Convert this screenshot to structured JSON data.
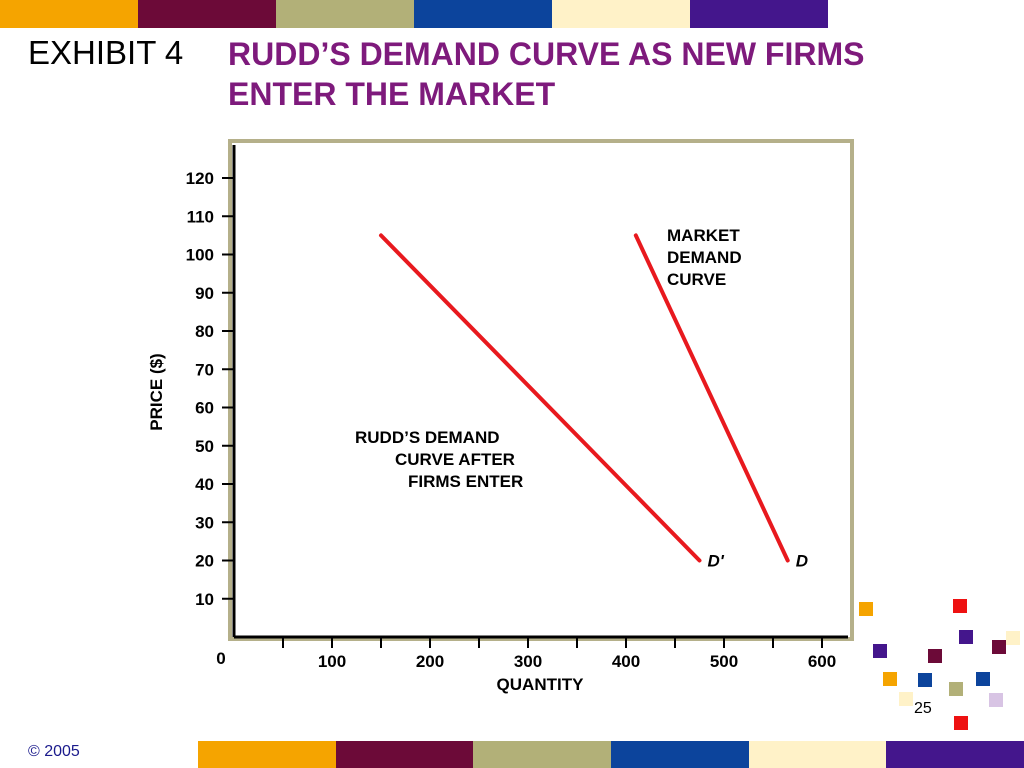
{
  "palette": [
    "#f5a400",
    "#6c0a38",
    "#b2b078",
    "#0c449c",
    "#fff2c8",
    "#44168c"
  ],
  "header": {
    "exhibit_label": "EXHIBIT 4",
    "title": "RUDD’S DEMAND CURVE AS NEW FIRMS ENTER THE MARKET"
  },
  "footer": {
    "copyright": "© 2005",
    "page_number": "25"
  },
  "chart_data": {
    "type": "line",
    "title": "",
    "xlabel": "QUANTITY",
    "ylabel": "PRICE ($)",
    "xlim": [
      0,
      600
    ],
    "ylim": [
      0,
      120
    ],
    "x_ticks": [
      100,
      200,
      300,
      400,
      500,
      600
    ],
    "y_ticks": [
      10,
      20,
      30,
      40,
      50,
      60,
      70,
      80,
      90,
      100,
      110,
      120
    ],
    "origin_label": "0",
    "line_color": "#e8191e",
    "frame_color": "#b5b08a",
    "series": [
      {
        "name": "D'",
        "x": [
          150,
          475
        ],
        "y": [
          105,
          20
        ],
        "annotation": [
          "RUDD’S DEMAND",
          "CURVE AFTER",
          "FIRMS ENTER"
        ]
      },
      {
        "name": "D",
        "x": [
          410,
          565
        ],
        "y": [
          105,
          20
        ],
        "annotation": [
          "MARKET",
          "DEMAND",
          "CURVE"
        ]
      }
    ]
  }
}
